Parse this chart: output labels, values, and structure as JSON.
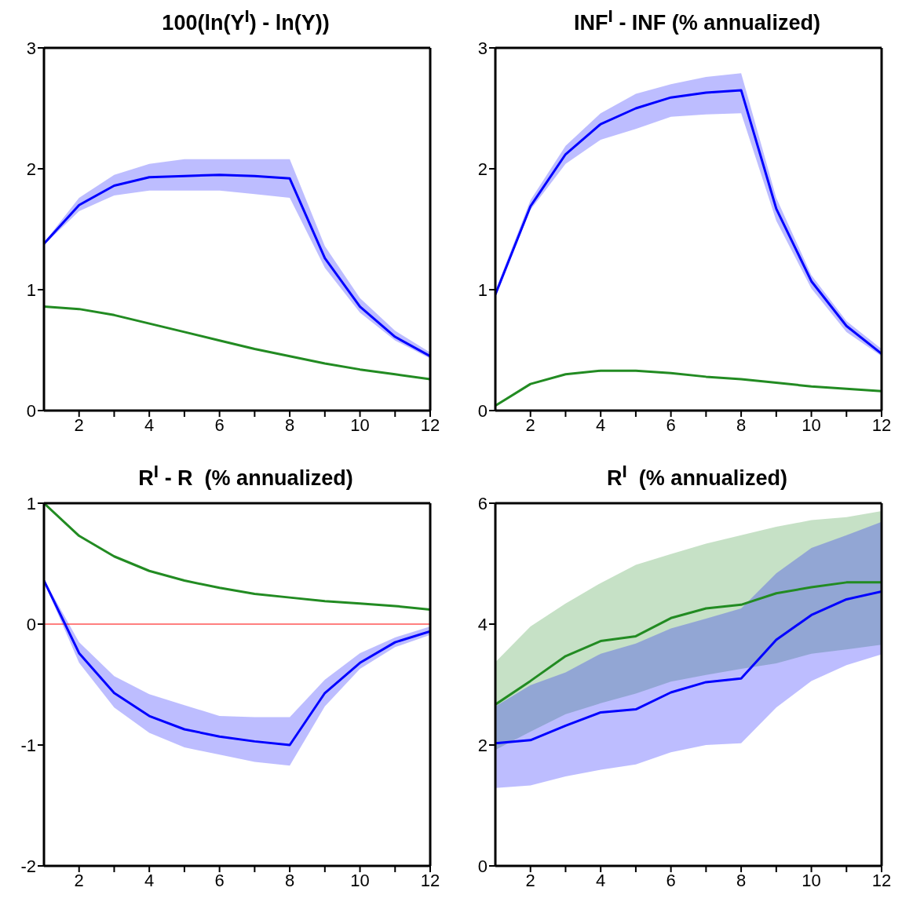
{
  "chart_data": [
    {
      "type": "line",
      "title": "100(ln(Y$^{I}$) - ln(Y))",
      "x": [
        1,
        2,
        3,
        4,
        5,
        6,
        7,
        8,
        9,
        10,
        11,
        12
      ],
      "xlim": [
        1,
        12
      ],
      "xticks": [
        2,
        {
          "value": 3,
          "label": null
        },
        4,
        {
          "value": 5,
          "label": null
        },
        6,
        {
          "value": 7,
          "label": null
        },
        8,
        {
          "value": 9,
          "label": null
        },
        10,
        {
          "value": 11,
          "label": null
        },
        12
      ],
      "ylim": [
        0,
        3
      ],
      "yticks": [
        0,
        1,
        2,
        3
      ],
      "grid": false,
      "legend": false,
      "marker": "none",
      "line_style": "solid",
      "series": [
        {
          "color": "#0000ff",
          "values": [
            1.38,
            1.7,
            1.86,
            1.93,
            1.94,
            1.95,
            1.94,
            1.92,
            1.26,
            0.86,
            0.61,
            0.45
          ],
          "lower": [
            1.37,
            1.65,
            1.78,
            1.82,
            1.82,
            1.82,
            1.79,
            1.76,
            1.18,
            0.81,
            0.58,
            0.43
          ],
          "upper": [
            1.39,
            1.76,
            1.95,
            2.04,
            2.08,
            2.08,
            2.08,
            2.08,
            1.36,
            0.93,
            0.66,
            0.48
          ]
        },
        {
          "color": "#228b22",
          "values": [
            0.86,
            0.84,
            0.79,
            0.72,
            0.65,
            0.58,
            0.51,
            0.45,
            0.39,
            0.34,
            0.3,
            0.26
          ]
        }
      ]
    },
    {
      "type": "line",
      "title": "INF$^{I}$ - INF (% annualized)",
      "x": [
        1,
        2,
        3,
        4,
        5,
        6,
        7,
        8,
        9,
        10,
        11,
        12
      ],
      "xlim": [
        1,
        12
      ],
      "xticks": [
        2,
        {
          "value": 3,
          "label": null
        },
        4,
        {
          "value": 5,
          "label": null
        },
        6,
        {
          "value": 7,
          "label": null
        },
        8,
        {
          "value": 9,
          "label": null
        },
        10,
        {
          "value": 11,
          "label": null
        },
        12
      ],
      "ylim": [
        0,
        3
      ],
      "yticks": [
        0,
        1,
        2,
        3
      ],
      "grid": false,
      "legend": false,
      "marker": "none",
      "line_style": "solid",
      "series": [
        {
          "color": "#0000ff",
          "values": [
            0.96,
            1.69,
            2.12,
            2.37,
            2.5,
            2.59,
            2.63,
            2.65,
            1.67,
            1.07,
            0.7,
            0.47
          ],
          "lower": [
            0.95,
            1.66,
            2.04,
            2.24,
            2.33,
            2.43,
            2.45,
            2.46,
            1.57,
            1.01,
            0.65,
            0.45
          ],
          "upper": [
            0.99,
            1.74,
            2.19,
            2.46,
            2.62,
            2.7,
            2.76,
            2.79,
            1.76,
            1.12,
            0.74,
            0.51
          ]
        },
        {
          "color": "#228b22",
          "values": [
            0.04,
            0.22,
            0.3,
            0.33,
            0.33,
            0.31,
            0.28,
            0.26,
            0.23,
            0.2,
            0.18,
            0.16
          ]
        }
      ]
    },
    {
      "type": "line",
      "title": "R$^{I}$ - R  (% annualized)",
      "x": [
        1,
        2,
        3,
        4,
        5,
        6,
        7,
        8,
        9,
        10,
        11,
        12
      ],
      "xlim": [
        1,
        12
      ],
      "xticks": [
        2,
        {
          "value": 3,
          "label": null
        },
        4,
        {
          "value": 5,
          "label": null
        },
        6,
        {
          "value": 7,
          "label": null
        },
        8,
        {
          "value": 9,
          "label": null
        },
        10,
        {
          "value": 11,
          "label": null
        },
        12
      ],
      "ylim": [
        -2,
        1
      ],
      "yticks": [
        -2,
        -1,
        0,
        1
      ],
      "grid": false,
      "legend": false,
      "marker": "none",
      "line_style": "solid",
      "ref_lines": [
        {
          "axis": "y",
          "value": 0,
          "color": "#ff0000"
        }
      ],
      "series": [
        {
          "color": "#228b22",
          "values": [
            1.0,
            0.73,
            0.56,
            0.44,
            0.36,
            0.3,
            0.25,
            0.22,
            0.19,
            0.17,
            0.15,
            0.12
          ]
        },
        {
          "color": "#0000ff",
          "values": [
            0.36,
            -0.24,
            -0.57,
            -0.76,
            -0.87,
            -0.93,
            -0.97,
            -1.0,
            -0.57,
            -0.32,
            -0.15,
            -0.06
          ],
          "lower": [
            0.35,
            -0.32,
            -0.69,
            -0.9,
            -1.02,
            -1.08,
            -1.14,
            -1.17,
            -0.68,
            -0.37,
            -0.19,
            -0.09
          ],
          "upper": [
            0.37,
            -0.15,
            -0.43,
            -0.58,
            -0.67,
            -0.76,
            -0.77,
            -0.77,
            -0.46,
            -0.24,
            -0.11,
            -0.02
          ]
        }
      ]
    },
    {
      "type": "line",
      "title": "R$^{I}$  (% annualized)",
      "x": [
        1,
        2,
        3,
        4,
        5,
        6,
        7,
        8,
        9,
        10,
        11,
        12
      ],
      "xlim": [
        1,
        12
      ],
      "xticks": [
        2,
        {
          "value": 3,
          "label": null
        },
        4,
        {
          "value": 5,
          "label": null
        },
        6,
        {
          "value": 7,
          "label": null
        },
        8,
        {
          "value": 9,
          "label": null
        },
        10,
        {
          "value": 11,
          "label": null
        },
        12
      ],
      "ylim": [
        0,
        6
      ],
      "yticks": [
        0,
        2,
        4,
        6
      ],
      "grid": false,
      "legend": false,
      "marker": "none",
      "line_style": "solid",
      "series": [
        {
          "color": "#228b22",
          "values": [
            2.67,
            3.06,
            3.47,
            3.72,
            3.8,
            4.1,
            4.26,
            4.32,
            4.51,
            4.61,
            4.69,
            4.69
          ],
          "lower": [
            1.92,
            2.22,
            2.51,
            2.69,
            2.85,
            3.05,
            3.16,
            3.26,
            3.35,
            3.51,
            3.58,
            3.66
          ],
          "upper": [
            3.37,
            3.96,
            4.34,
            4.68,
            4.98,
            5.16,
            5.33,
            5.47,
            5.61,
            5.72,
            5.77,
            5.87
          ]
        },
        {
          "color": "#0000ff",
          "values": [
            2.03,
            2.08,
            2.32,
            2.54,
            2.59,
            2.87,
            3.04,
            3.1,
            3.74,
            4.15,
            4.41,
            4.54
          ],
          "lower": [
            1.29,
            1.33,
            1.48,
            1.59,
            1.68,
            1.88,
            2.0,
            2.03,
            2.62,
            3.06,
            3.32,
            3.5
          ],
          "upper": [
            2.64,
            2.99,
            3.2,
            3.51,
            3.68,
            3.93,
            4.09,
            4.26,
            4.84,
            5.26,
            5.47,
            5.69
          ]
        }
      ]
    }
  ]
}
